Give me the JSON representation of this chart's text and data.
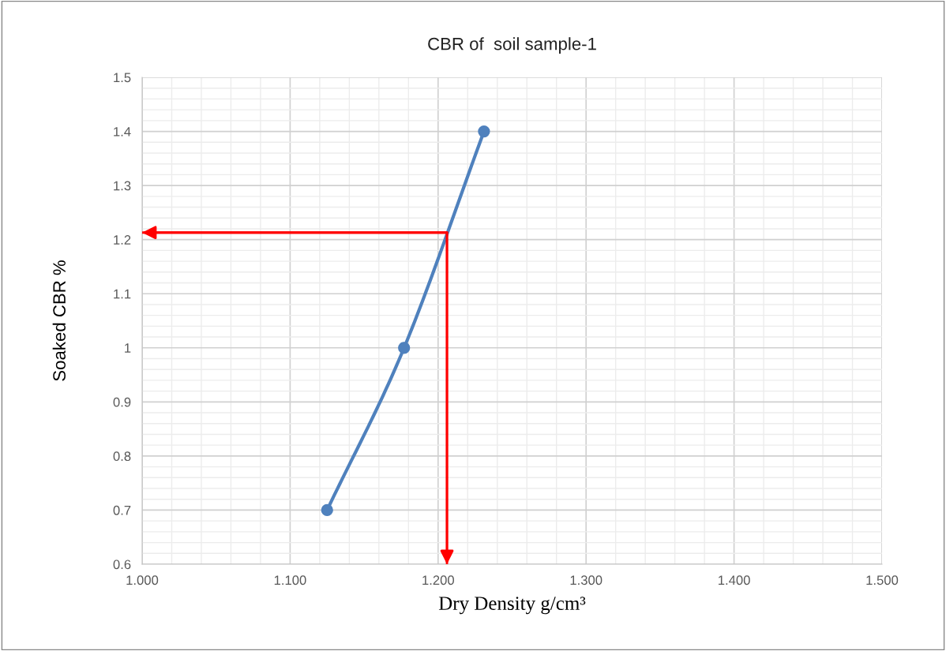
{
  "chart_data": {
    "type": "line",
    "title": "CBR of  soil sample-1",
    "xlabel": "Dry Density g/cm³",
    "ylabel": "Soaked CBR %",
    "series": [
      {
        "color": "#4f81bd",
        "x": [
          1.125,
          1.177,
          1.231
        ],
        "values": [
          0.7,
          1.0,
          1.4
        ],
        "marker": "circle"
      },
      {
        "color": "#ff0000",
        "x": [
          1.0,
          1.206,
          1.206
        ],
        "values": [
          1.213,
          1.213,
          0.6
        ],
        "marker": "none"
      }
    ],
    "xlim": [
      1.0,
      1.5
    ],
    "ylim": [
      0.6,
      1.5
    ],
    "xticks": [
      {
        "value": 1.0,
        "label": "1.000"
      },
      {
        "value": 1.1,
        "label": "1.100"
      },
      {
        "value": 1.2,
        "label": "1.200"
      },
      {
        "value": 1.3,
        "label": "1.300"
      },
      {
        "value": 1.4,
        "label": "1.400"
      },
      {
        "value": 1.5,
        "label": "1.500"
      }
    ],
    "yticks": [
      0.6,
      0.7,
      0.8,
      0.9,
      1,
      1.1,
      1.2,
      1.3,
      1.4,
      1.5
    ],
    "grid": true,
    "legend": false
  }
}
